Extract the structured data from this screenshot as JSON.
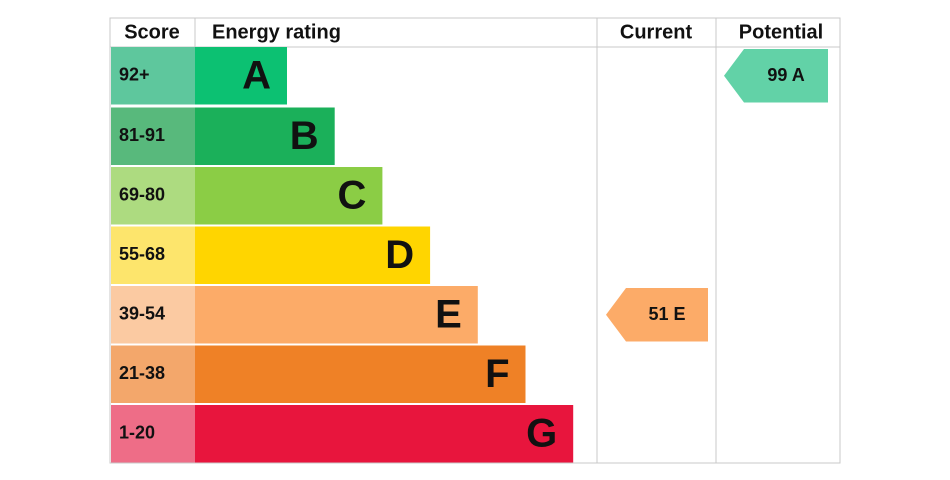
{
  "header": {
    "score": "Score",
    "rating": "Energy rating",
    "current": "Current",
    "potential": "Potential"
  },
  "bands": [
    {
      "score": "92+",
      "letter": "A",
      "color": "#0cc172",
      "score_color": "#5ec79d"
    },
    {
      "score": "81-91",
      "letter": "B",
      "color": "#1bb05a",
      "score_color": "#58b97c"
    },
    {
      "score": "69-80",
      "letter": "C",
      "color": "#8bcd45",
      "score_color": "#addb80"
    },
    {
      "score": "55-68",
      "letter": "D",
      "color": "#ffd500",
      "score_color": "#fde56c"
    },
    {
      "score": "39-54",
      "letter": "E",
      "color": "#fcab68",
      "score_color": "#fbcaa2"
    },
    {
      "score": "21-38",
      "letter": "F",
      "color": "#ef8126",
      "score_color": "#f3a76b"
    },
    {
      "score": "1-20",
      "letter": "G",
      "color": "#e8153d",
      "score_color": "#ee6d87"
    }
  ],
  "current": {
    "score": 51,
    "letter": "E",
    "color": "#fcab68"
  },
  "potential": {
    "score": 99,
    "letter": "A",
    "color": "#62d2a7"
  }
}
